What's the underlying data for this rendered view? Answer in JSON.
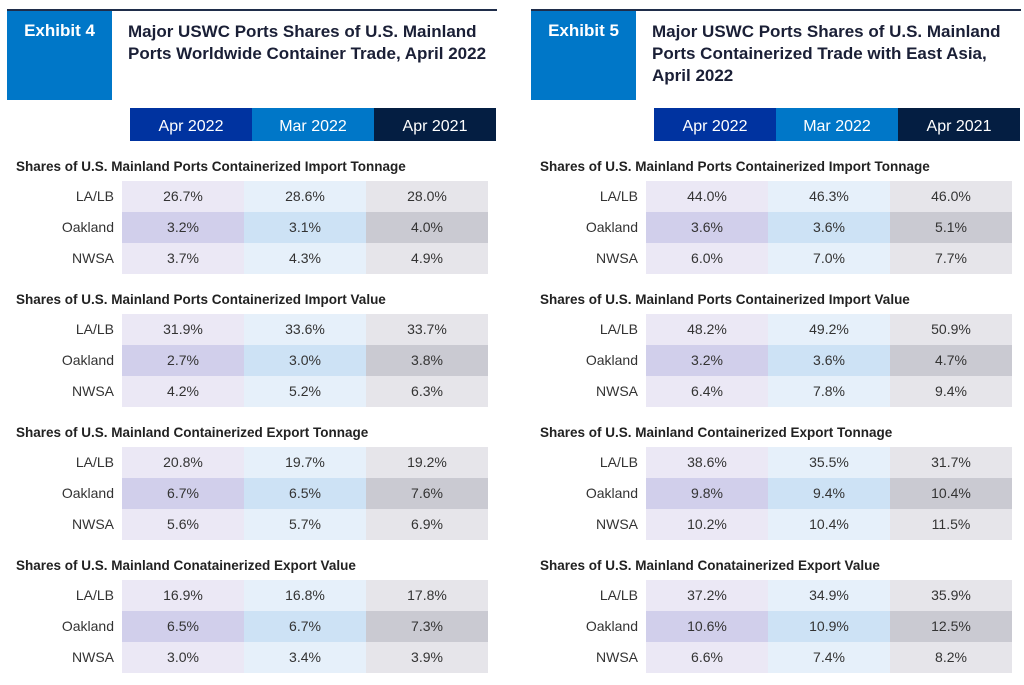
{
  "colors": {
    "exhibit": "#0077c8",
    "col_apr2022": "#0033a0",
    "col_mar2022": "#0077c8",
    "col_apr2021": "#041e42"
  },
  "columns": [
    "Apr 2022",
    "Mar 2022",
    "Apr 2021"
  ],
  "exhibits": [
    {
      "label": "Exhibit 4",
      "title": "Major USWC Ports Shares of U.S. Mainland Ports Worldwide Container Trade, April 2022",
      "sections": [
        {
          "heading": "Shares of U.S. Mainland Ports Containerized Import Tonnage",
          "rows": [
            {
              "port": "LA/LB",
              "values": [
                "26.7%",
                "28.6%",
                "28.0%"
              ]
            },
            {
              "port": "Oakland",
              "values": [
                "3.2%",
                "3.1%",
                "4.0%"
              ]
            },
            {
              "port": "NWSA",
              "values": [
                "3.7%",
                "4.3%",
                "4.9%"
              ]
            }
          ]
        },
        {
          "heading": "Shares of U.S. Mainland Ports Containerized Import Value",
          "rows": [
            {
              "port": "LA/LB",
              "values": [
                "31.9%",
                "33.6%",
                "33.7%"
              ]
            },
            {
              "port": "Oakland",
              "values": [
                "2.7%",
                "3.0%",
                "3.8%"
              ]
            },
            {
              "port": "NWSA",
              "values": [
                "4.2%",
                "5.2%",
                "6.3%"
              ]
            }
          ]
        },
        {
          "heading": "Shares of U.S. Mainland Containerized Export Tonnage",
          "rows": [
            {
              "port": "LA/LB",
              "values": [
                "20.8%",
                "19.7%",
                "19.2%"
              ]
            },
            {
              "port": "Oakland",
              "values": [
                "6.7%",
                "6.5%",
                "7.6%"
              ]
            },
            {
              "port": "NWSA",
              "values": [
                "5.6%",
                "5.7%",
                "6.9%"
              ]
            }
          ]
        },
        {
          "heading": "Shares of U.S. Mainland Conatainerized Export Value",
          "rows": [
            {
              "port": "LA/LB",
              "values": [
                "16.9%",
                "16.8%",
                "17.8%"
              ]
            },
            {
              "port": "Oakland",
              "values": [
                "6.5%",
                "6.7%",
                "7.3%"
              ]
            },
            {
              "port": "NWSA",
              "values": [
                "3.0%",
                "3.4%",
                "3.9%"
              ]
            }
          ]
        }
      ]
    },
    {
      "label": "Exhibit 5",
      "title": "Major USWC Ports Shares of U.S. Mainland Ports Containerized Trade with East Asia, April 2022",
      "sections": [
        {
          "heading": "Shares of U.S. Mainland Ports Containerized Import Tonnage",
          "rows": [
            {
              "port": "LA/LB",
              "values": [
                "44.0%",
                "46.3%",
                "46.0%"
              ]
            },
            {
              "port": "Oakland",
              "values": [
                "3.6%",
                "3.6%",
                "5.1%"
              ]
            },
            {
              "port": "NWSA",
              "values": [
                "6.0%",
                "7.0%",
                "7.7%"
              ]
            }
          ]
        },
        {
          "heading": "Shares of U.S. Mainland Ports Containerized Import Value",
          "rows": [
            {
              "port": "LA/LB",
              "values": [
                "48.2%",
                "49.2%",
                "50.9%"
              ]
            },
            {
              "port": "Oakland",
              "values": [
                "3.2%",
                "3.6%",
                "4.7%"
              ]
            },
            {
              "port": "NWSA",
              "values": [
                "6.4%",
                "7.8%",
                "9.4%"
              ]
            }
          ]
        },
        {
          "heading": "Shares of U.S. Mainland Containerized Export Tonnage",
          "rows": [
            {
              "port": "LA/LB",
              "values": [
                "38.6%",
                "35.5%",
                "31.7%"
              ]
            },
            {
              "port": "Oakland",
              "values": [
                "9.8%",
                "9.4%",
                "10.4%"
              ]
            },
            {
              "port": "NWSA",
              "values": [
                "10.2%",
                "10.4%",
                "11.5%"
              ]
            }
          ]
        },
        {
          "heading": "Shares of U.S. Mainland Conatainerized Export Value",
          "rows": [
            {
              "port": "LA/LB",
              "values": [
                "37.2%",
                "34.9%",
                "35.9%"
              ]
            },
            {
              "port": "Oakland",
              "values": [
                "10.6%",
                "10.9%",
                "12.5%"
              ]
            },
            {
              "port": "NWSA",
              "values": [
                "6.6%",
                "7.4%",
                "8.2%"
              ]
            }
          ]
        }
      ]
    }
  ]
}
